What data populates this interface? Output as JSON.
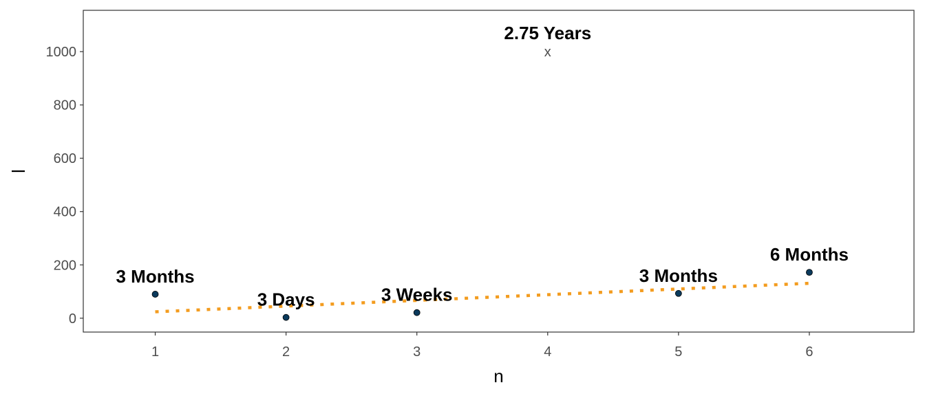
{
  "chart_data": {
    "type": "scatter",
    "title": "",
    "xlabel": "n",
    "ylabel": "l",
    "xlim": [
      0.45,
      6.8
    ],
    "ylim": [
      -52,
      1155
    ],
    "x_ticks": [
      1,
      2,
      3,
      4,
      5,
      6
    ],
    "y_ticks": [
      0,
      200,
      400,
      600,
      800,
      1000
    ],
    "grid": false,
    "colors": {
      "points": "#0b3a5c",
      "trend": "#f39c1f",
      "outlier": "#4d4d4d"
    },
    "points": [
      {
        "x": 1,
        "y": 90,
        "label": "3 Months"
      },
      {
        "x": 2,
        "y": 3,
        "label": "3 Days"
      },
      {
        "x": 3,
        "y": 21,
        "label": "3 Weeks"
      },
      {
        "x": 5,
        "y": 93,
        "label": "3 Months"
      },
      {
        "x": 6,
        "y": 172,
        "label": "6 Months"
      }
    ],
    "outlier": {
      "x": 4,
      "y": 1000,
      "marker": "x",
      "label": "2.75 Years"
    },
    "trend_line": {
      "style": "dotted",
      "x": [
        1,
        6
      ],
      "y": [
        24,
        131
      ]
    }
  }
}
